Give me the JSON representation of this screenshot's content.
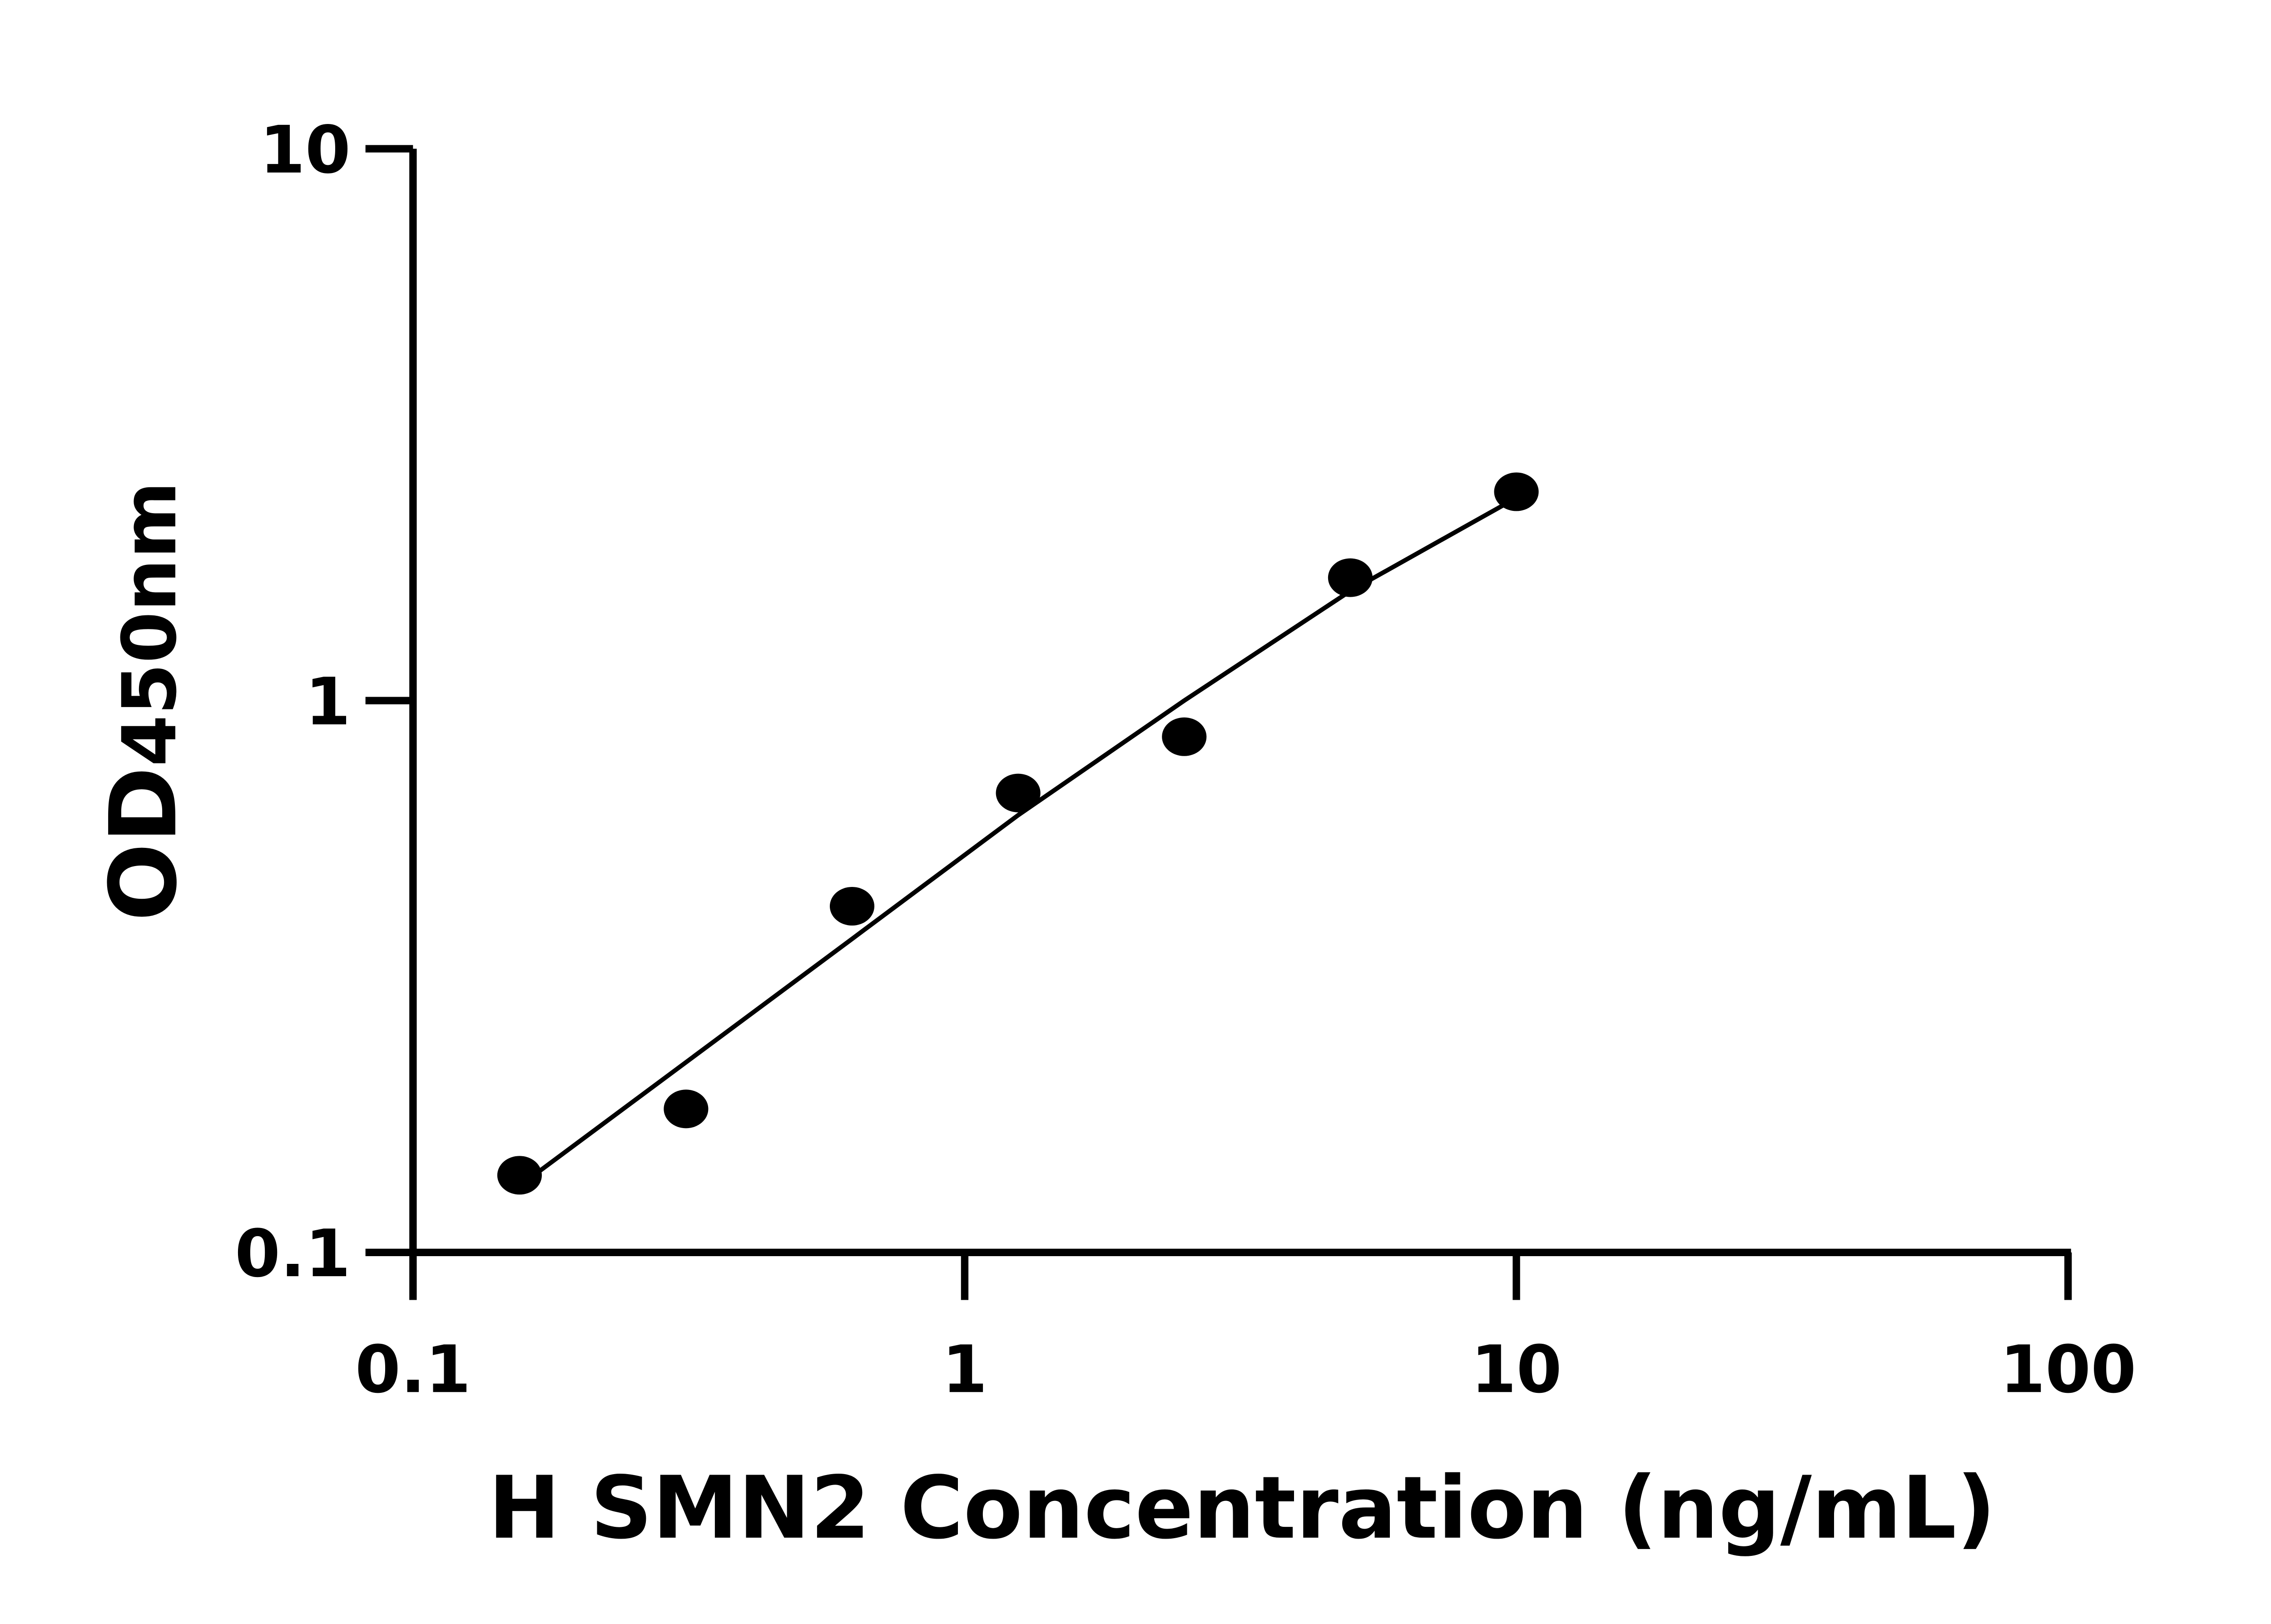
{
  "chart_data": {
    "type": "scatter",
    "title": "",
    "xlabel": "H SMN2 Concentration (ng/mL)",
    "ylabel_main": "OD",
    "ylabel_sub": "450nm",
    "x_scale": "log",
    "y_scale": "log",
    "xlim": [
      0.1,
      100
    ],
    "ylim": [
      0.1,
      10
    ],
    "x_ticks": [
      "0.1",
      "1",
      "10",
      "100"
    ],
    "y_ticks": [
      "0.1",
      "1",
      "10"
    ],
    "grid": false,
    "marker_color": "#000000",
    "points": [
      {
        "x": 0.156,
        "y": 0.138
      },
      {
        "x": 0.3125,
        "y": 0.182
      },
      {
        "x": 0.625,
        "y": 0.424
      },
      {
        "x": 1.25,
        "y": 0.68
      },
      {
        "x": 2.5,
        "y": 0.86
      },
      {
        "x": 5,
        "y": 1.67
      },
      {
        "x": 10,
        "y": 2.39
      }
    ],
    "fit_curve": [
      {
        "x": 0.156,
        "y": 0.132
      },
      {
        "x": 0.625,
        "y": 0.37
      },
      {
        "x": 1.25,
        "y": 0.62
      },
      {
        "x": 2.5,
        "y": 1.0
      },
      {
        "x": 5,
        "y": 1.58
      },
      {
        "x": 10,
        "y": 2.33
      }
    ]
  }
}
